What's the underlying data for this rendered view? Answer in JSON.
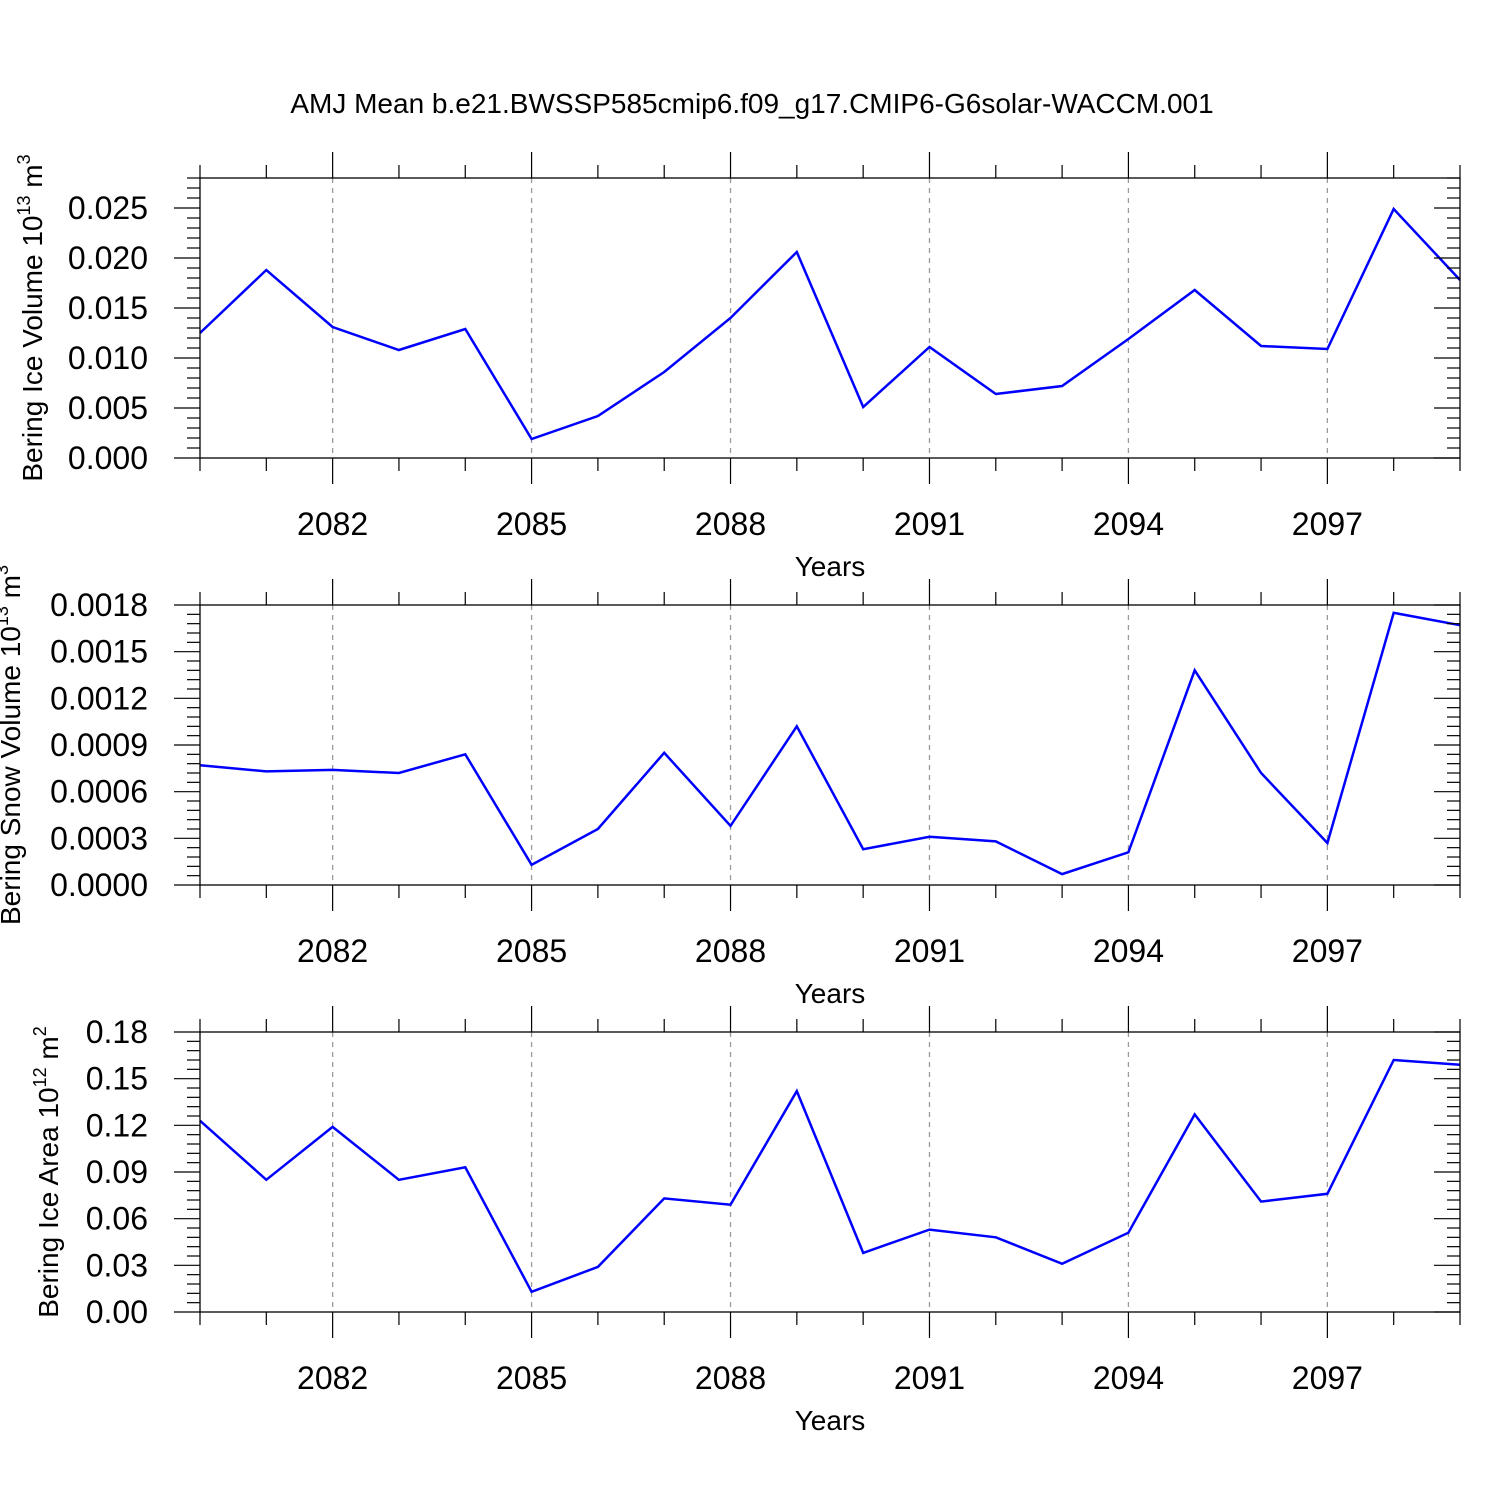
{
  "title": "AMJ Mean b.e21.BWSSP585cmip6.f09_g17.CMIP6-G6solar-WACCM.001",
  "chart_data": [
    {
      "type": "line",
      "ylabel": "Bering Ice Volume 10",
      "ylabel_exp": "13",
      "ylabel_unit": " m",
      "ylabel_unit_exp": "3",
      "xlabel": "Years",
      "xlim": [
        2080,
        2099
      ],
      "ylim": [
        0,
        0.028
      ],
      "xticks": [
        "2082",
        "2085",
        "2088",
        "2091",
        "2094",
        "2097"
      ],
      "xtick_values": [
        2082,
        2085,
        2088,
        2091,
        2094,
        2097
      ],
      "yticks": [
        "0.000",
        "0.005",
        "0.010",
        "0.015",
        "0.020",
        "0.025"
      ],
      "ytick_values": [
        0,
        0.005,
        0.01,
        0.015,
        0.02,
        0.025
      ],
      "grid": "vertical dashed at major x ticks",
      "series": [
        {
          "color": "#0000ff",
          "x": [
            2080,
            2081,
            2082,
            2083,
            2084,
            2085,
            2086,
            2087,
            2088,
            2089,
            2090,
            2091,
            2092,
            2093,
            2094,
            2095,
            2096,
            2097,
            2098,
            2099
          ],
          "values": [
            0.0125,
            0.0188,
            0.0131,
            0.0108,
            0.0129,
            0.0019,
            0.0042,
            0.0086,
            0.014,
            0.0206,
            0.0051,
            0.0111,
            0.0064,
            0.0072,
            0.0119,
            0.0168,
            0.0112,
            0.0109,
            0.0249,
            0.0178
          ]
        }
      ]
    },
    {
      "type": "line",
      "ylabel": "Bering Snow Volume 10",
      "ylabel_exp": "13",
      "ylabel_unit": " m",
      "ylabel_unit_exp": "3",
      "xlabel": "Years",
      "xlim": [
        2080,
        2099
      ],
      "ylim": [
        0,
        0.0018
      ],
      "xticks": [
        "2082",
        "2085",
        "2088",
        "2091",
        "2094",
        "2097"
      ],
      "xtick_values": [
        2082,
        2085,
        2088,
        2091,
        2094,
        2097
      ],
      "yticks": [
        "0.0000",
        "0.0003",
        "0.0006",
        "0.0009",
        "0.0012",
        "0.0015",
        "0.0018"
      ],
      "ytick_values": [
        0,
        0.0003,
        0.0006,
        0.0009,
        0.0012,
        0.0015,
        0.0018
      ],
      "grid": "vertical dashed at major x ticks",
      "series": [
        {
          "color": "#0000ff",
          "x": [
            2080,
            2081,
            2082,
            2083,
            2084,
            2085,
            2086,
            2087,
            2088,
            2089,
            2090,
            2091,
            2092,
            2093,
            2094,
            2095,
            2096,
            2097,
            2098,
            2099
          ],
          "values": [
            0.00077,
            0.00073,
            0.00074,
            0.00072,
            0.00084,
            0.00013,
            0.00036,
            0.00085,
            0.00038,
            0.00102,
            0.00023,
            0.00031,
            0.00028,
            7e-05,
            0.00021,
            0.00138,
            0.00072,
            0.00027,
            0.00175,
            0.00167
          ]
        }
      ]
    },
    {
      "type": "line",
      "ylabel": "Bering Ice Area 10",
      "ylabel_exp": "12",
      "ylabel_unit": " m",
      "ylabel_unit_exp": "2",
      "xlabel": "Years",
      "xlim": [
        2080,
        2099
      ],
      "ylim": [
        0,
        0.18
      ],
      "xticks": [
        "2082",
        "2085",
        "2088",
        "2091",
        "2094",
        "2097"
      ],
      "xtick_values": [
        2082,
        2085,
        2088,
        2091,
        2094,
        2097
      ],
      "yticks": [
        "0.00",
        "0.03",
        "0.06",
        "0.09",
        "0.12",
        "0.15",
        "0.18"
      ],
      "ytick_values": [
        0,
        0.03,
        0.06,
        0.09,
        0.12,
        0.15,
        0.18
      ],
      "grid": "vertical dashed at major x ticks",
      "series": [
        {
          "color": "#0000ff",
          "x": [
            2080,
            2081,
            2082,
            2083,
            2084,
            2085,
            2086,
            2087,
            2088,
            2089,
            2090,
            2091,
            2092,
            2093,
            2094,
            2095,
            2096,
            2097,
            2098,
            2099
          ],
          "values": [
            0.123,
            0.085,
            0.119,
            0.085,
            0.093,
            0.013,
            0.029,
            0.073,
            0.069,
            0.142,
            0.038,
            0.053,
            0.048,
            0.031,
            0.051,
            0.127,
            0.071,
            0.076,
            0.162,
            0.159
          ]
        }
      ]
    }
  ]
}
